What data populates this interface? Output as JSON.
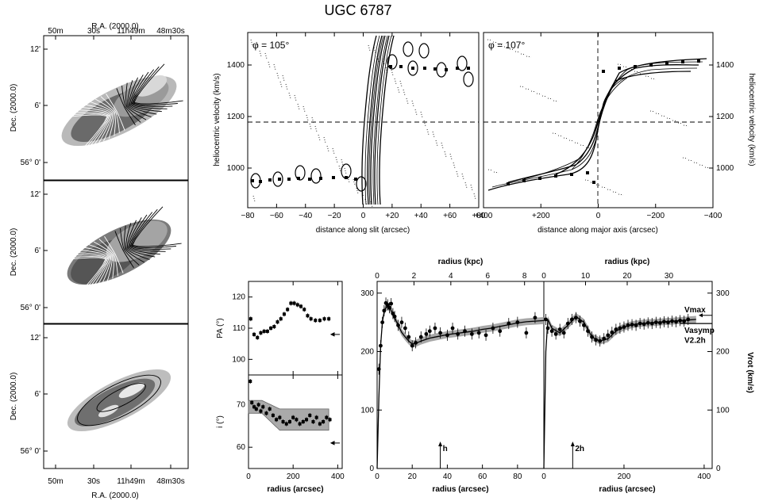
{
  "figure": {
    "title": "UGC 6787"
  },
  "maps": {
    "ra_label": "R.A. (2000.0)",
    "dec_label": "Dec. (2000.0)",
    "ra_ticks": [
      "50m",
      "30s",
      "11h49m",
      "48m30s"
    ],
    "dec_ticks": [
      "12'",
      "6'",
      "56° 0'"
    ]
  },
  "pv_slit": {
    "phi_label": "φ = 105°",
    "xlabel": "distance along slit (arcsec)",
    "ylabel": "heliocentric velocity (km/s)",
    "xticks": [
      "−80",
      "−60",
      "−40",
      "−20",
      "0",
      "+20",
      "+40",
      "+60",
      "+80"
    ],
    "yticks": [
      "1000",
      "1200",
      "1400"
    ]
  },
  "pv_major": {
    "phi_label": "φ = 107°",
    "xlabel": "distance along major axis (arcsec)",
    "ylabel": "heliocentric velocity (km/s)",
    "xticks": [
      "+400",
      "+200",
      "0",
      "−200",
      "−400"
    ],
    "yticks": [
      "1000",
      "1200",
      "1400"
    ]
  },
  "chart_data": [
    {
      "type": "scatter",
      "panel": "PA",
      "ylabel": "PA (°)",
      "xlabel": "radius (arcsec)",
      "xlim": [
        0,
        420
      ],
      "ylim": [
        95,
        125
      ],
      "xticks": [
        "0",
        "200",
        "400"
      ],
      "yticks": [
        "100",
        "110",
        "120"
      ],
      "x": [
        10,
        25,
        40,
        55,
        70,
        85,
        100,
        115,
        130,
        145,
        160,
        175,
        190,
        205,
        220,
        235,
        250,
        265,
        280,
        300,
        320,
        340,
        360
      ],
      "y": [
        113,
        108,
        107,
        108.5,
        109,
        109,
        110,
        110.5,
        112,
        113,
        114.5,
        116,
        118,
        118,
        117.5,
        117,
        116,
        114,
        113,
        112.5,
        112.5,
        113,
        113
      ],
      "arrow_value": 108
    },
    {
      "type": "scatter",
      "panel": "i",
      "ylabel": "i (°)",
      "xlabel": "radius (arcsec)",
      "xlim": [
        0,
        420
      ],
      "ylim": [
        55,
        77
      ],
      "xticks": [
        "0",
        "200",
        "400"
      ],
      "yticks": [
        "60",
        "70"
      ],
      "x": [
        8,
        15,
        25,
        35,
        45,
        55,
        65,
        80,
        95,
        110,
        125,
        140,
        155,
        170,
        185,
        200,
        215,
        230,
        245,
        260,
        275,
        290,
        305,
        320,
        335,
        350,
        365
      ],
      "y": [
        75.5,
        70.5,
        69.5,
        69,
        70,
        68.5,
        69.5,
        68,
        69,
        67.5,
        66.5,
        67,
        66,
        65.5,
        66,
        67,
        66.5,
        65.5,
        66,
        66.5,
        67.5,
        66,
        67,
        65.5,
        66,
        67,
        66.5
      ],
      "arrow_value": 61
    },
    {
      "type": "line",
      "panel": "rotation curve",
      "xlabel": "radius (arcsec)",
      "top_xlabel": "radius (kpc)",
      "ylim": [
        0,
        320
      ],
      "yticks": [
        "0",
        "100",
        "200",
        "300"
      ],
      "left": {
        "xlim": [
          0,
          95
        ],
        "xticks": [
          "0",
          "20",
          "40",
          "60",
          "80"
        ],
        "top_ticks": [
          "0",
          "2",
          "4",
          "6",
          "8"
        ],
        "model_x": [
          0,
          1,
          2,
          3,
          4,
          5,
          6,
          7,
          8,
          10,
          12,
          14,
          16,
          18,
          20,
          22,
          25,
          30,
          35,
          40,
          45,
          50,
          55,
          60,
          65,
          70,
          75,
          80,
          85,
          90,
          95
        ],
        "model_y": [
          0,
          120,
          210,
          250,
          268,
          275,
          277,
          275,
          270,
          258,
          245,
          233,
          225,
          218,
          213,
          214,
          218,
          223,
          226,
          229,
          231,
          233,
          235,
          238,
          240,
          243,
          246,
          249,
          251,
          252,
          253
        ],
        "points_x": [
          1,
          2,
          3,
          4,
          5,
          6,
          7,
          8,
          9,
          10,
          12,
          14,
          16,
          18,
          20,
          22,
          25,
          28,
          30,
          33,
          36,
          40,
          43,
          46,
          50,
          54,
          58,
          62,
          66,
          70,
          75,
          80,
          85,
          90
        ],
        "points_y": [
          170,
          210,
          250,
          270,
          283,
          280,
          275,
          282,
          265,
          260,
          245,
          250,
          240,
          225,
          210,
          215,
          225,
          230,
          235,
          240,
          232,
          228,
          240,
          230,
          235,
          230,
          232,
          228,
          240,
          235,
          248,
          250,
          232,
          258
        ],
        "h_label": "h",
        "h_x": 36
      },
      "right": {
        "xlim": [
          0,
          420
        ],
        "xticks": [
          "0",
          "200",
          "400"
        ],
        "top_ticks": [
          "0",
          "10",
          "20",
          "30"
        ],
        "model_x": [
          0,
          5,
          10,
          20,
          40,
          60,
          80,
          100,
          120,
          140,
          160,
          180,
          200,
          220,
          240,
          260,
          280,
          300,
          320,
          340,
          360,
          380
        ],
        "model_y": [
          0,
          200,
          255,
          240,
          232,
          245,
          260,
          250,
          225,
          218,
          222,
          235,
          242,
          246,
          248,
          249,
          250,
          251,
          252,
          253,
          254,
          255
        ],
        "points_x": [
          5,
          10,
          20,
          30,
          40,
          50,
          60,
          70,
          80,
          90,
          100,
          110,
          120,
          130,
          140,
          150,
          160,
          170,
          180,
          190,
          200,
          210,
          220,
          230,
          240,
          250,
          260,
          270,
          280,
          290,
          300,
          310,
          320,
          330,
          340,
          350,
          360
        ],
        "points_y": [
          255,
          240,
          235,
          230,
          238,
          232,
          248,
          255,
          258,
          252,
          245,
          235,
          225,
          220,
          218,
          222,
          228,
          233,
          238,
          240,
          242,
          245,
          246,
          245,
          248,
          247,
          249,
          248,
          250,
          249,
          251,
          250,
          252,
          251,
          253,
          252,
          255
        ],
        "h_label": "2h",
        "h_x": 72
      },
      "right_ylabel": "Vrot (km/s)",
      "v_labels": [
        "Vmax",
        "Vasymp",
        "V2.2h"
      ],
      "v_values": [
        262,
        248,
        242
      ]
    }
  ]
}
